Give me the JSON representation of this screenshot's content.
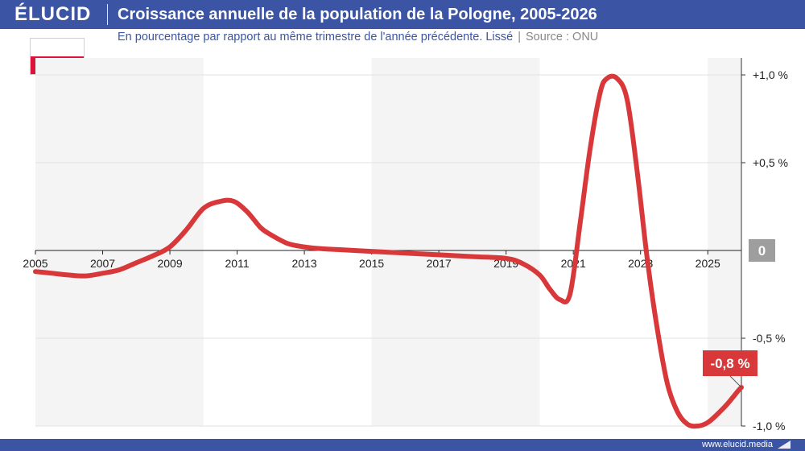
{
  "header": {
    "logo": "ÉLUCID",
    "title": "Croissance annuelle de la population de la Pologne, 2005-2026"
  },
  "subtitle": {
    "text": "En pourcentage par rapport au même trimestre de l'année précédente. Lissé",
    "separator": "|",
    "source": "Source : ONU"
  },
  "flag": {
    "country": "Pologne",
    "colors": [
      "#ffffff",
      "#dc143c"
    ]
  },
  "footer": {
    "site": "www.elucid.media"
  },
  "colors": {
    "brand": "#3b55a4",
    "line": "#d9383a",
    "negative_label": "#d9383a",
    "zero_box": "#9e9e9e",
    "band": "#f4f4f4"
  },
  "chart_data": {
    "type": "line",
    "title": "Croissance annuelle de la population de la Pologne, 2005-2026",
    "xlim": [
      2005,
      2026
    ],
    "ylim": [
      -1.0,
      1.0
    ],
    "x_ticks": [
      2005,
      2007,
      2009,
      2011,
      2013,
      2015,
      2017,
      2019,
      2021,
      2023,
      2025
    ],
    "x_tick_labels": [
      "2005",
      "2007",
      "2009",
      "2011",
      "2013",
      "2015",
      "2017",
      "2019",
      "2021",
      "2023",
      "2025"
    ],
    "y_ticks": [
      1.0,
      0.5,
      -0.5,
      -1.0
    ],
    "y_tick_labels": [
      "+1,0 %",
      "+0,5 %",
      "-0,5 %",
      "-1,0 %"
    ],
    "zero_label": "0",
    "shaded_bands": [
      [
        2005,
        2010
      ],
      [
        2015,
        2020
      ],
      [
        2025,
        2026
      ]
    ],
    "grid": "horizontal",
    "series": [
      {
        "x": [
          2005.0,
          2005.5,
          2006.0,
          2006.5,
          2007.0,
          2007.5,
          2008.0,
          2008.5,
          2009.0,
          2009.5,
          2010.0,
          2010.5,
          2010.9,
          2011.3,
          2011.7,
          2012.0,
          2012.5,
          2013.0,
          2013.5,
          2014.0,
          2015.0,
          2016.0,
          2017.0,
          2018.0,
          2019.0,
          2019.5,
          2020.0,
          2020.3,
          2020.6,
          2020.9,
          2021.2,
          2021.5,
          2021.8,
          2022.0,
          2022.3,
          2022.6,
          2022.9,
          2023.2,
          2023.5,
          2023.8,
          2024.1,
          2024.4,
          2024.7,
          2025.0,
          2025.3,
          2025.6,
          2025.9,
          2026.0
        ],
        "y": [
          -0.12,
          -0.13,
          -0.14,
          -0.145,
          -0.13,
          -0.11,
          -0.07,
          -0.03,
          0.02,
          0.12,
          0.24,
          0.28,
          0.28,
          0.22,
          0.13,
          0.09,
          0.04,
          0.02,
          0.01,
          0.005,
          -0.005,
          -0.015,
          -0.025,
          -0.035,
          -0.045,
          -0.075,
          -0.14,
          -0.22,
          -0.28,
          -0.25,
          0.15,
          0.58,
          0.9,
          0.98,
          0.98,
          0.86,
          0.45,
          -0.05,
          -0.45,
          -0.76,
          -0.92,
          -0.99,
          -1.0,
          -0.98,
          -0.93,
          -0.87,
          -0.8,
          -0.78
        ]
      }
    ],
    "annotation": {
      "text": "-0,8 %",
      "x": 2026.0,
      "y": -0.78
    }
  }
}
